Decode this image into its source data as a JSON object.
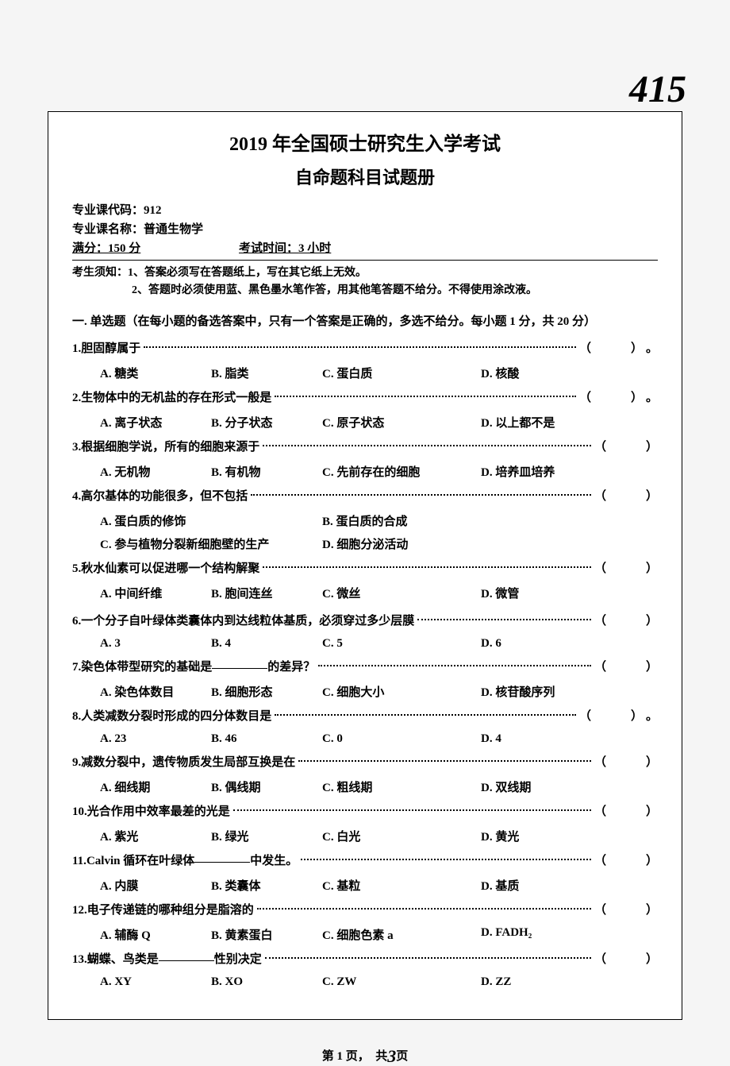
{
  "handwritten_page": "415",
  "header": {
    "title": "2019 年全国硕士研究生入学考试",
    "subtitle": "自命题科目试题册",
    "course_code_label": "专业课代码：",
    "course_code": "912",
    "course_name_label": "专业课名称：",
    "course_name": "普通生物学",
    "full_marks_label": "满分：",
    "full_marks": "150 分",
    "exam_time_label": "考试时间：",
    "exam_time": "3 小时",
    "notice_label": "考生须知：",
    "notice1": "1、答案必须写在答题纸上，写在其它纸上无效。",
    "notice2": "2、答题时必须使用蓝、黑色墨水笔作答，用其他笔答题不给分。不得使用涂改液。"
  },
  "section1_title": "一. 单选题（在每小题的备选答案中，只有一个答案是正确的，多选不给分。每小题 1 分，共 20 分）",
  "questions": [
    {
      "num": "1.",
      "stem": "胆固醇属于",
      "tail_period": true,
      "options": {
        "A": "糖类",
        "B": "脂类",
        "C": "蛋白质",
        "D": "核酸"
      }
    },
    {
      "num": "2.",
      "stem": "生物体中的无机盐的存在形式一般是",
      "tail_period": true,
      "options": {
        "A": "离子状态",
        "B": "分子状态",
        "C": "原子状态",
        "D": "以上都不是"
      }
    },
    {
      "num": "3.",
      "stem": "根据细胞学说，所有的细胞来源于",
      "tail_period": false,
      "options": {
        "A": "无机物",
        "B": "有机物",
        "C": "先前存在的细胞",
        "D": "培养皿培养"
      }
    },
    {
      "num": "4.",
      "stem": "高尔基体的功能很多，但不包括",
      "tail_period": false,
      "options_layout": "2col",
      "options": {
        "A": "蛋白质的修饰",
        "B": "蛋白质的合成",
        "C": "参与植物分裂新细胞壁的生产",
        "D": "细胞分泌活动"
      }
    },
    {
      "num": "5.",
      "stem": "秋水仙素可以促进哪一个结构解聚",
      "tail_period": false,
      "options": {
        "A": "中间纤维",
        "B": "胞间连丝",
        "C": "微丝",
        "D": "微管"
      }
    },
    {
      "num": "6.",
      "stem": "一个分子自叶绿体类囊体内到达线粒体基质，必须穿过多少层膜",
      "tail_period": false,
      "extra_margin": true,
      "options": {
        "A": "3",
        "B": "4",
        "C": "5",
        "D": "6"
      }
    },
    {
      "num": "7.",
      "stem_pre": "染色体带型研究的基础是",
      "stem_post": "的差异？",
      "has_blank": true,
      "tail_period": false,
      "options": {
        "A": "染色体数目",
        "B": "细胞形态",
        "C": "细胞大小",
        "D": "核苷酸序列"
      }
    },
    {
      "num": "8.",
      "stem": "人类减数分裂时形成的四分体数目是",
      "tail_period": true,
      "options": {
        "A": "23",
        "B": "46",
        "C": "0",
        "D": "4"
      }
    },
    {
      "num": "9.",
      "stem": "减数分裂中，遗传物质发生局部互换是在",
      "tail_period": false,
      "options": {
        "A": "细线期",
        "B": "偶线期",
        "C": "粗线期",
        "D": "双线期"
      }
    },
    {
      "num": "10.",
      "stem": "光合作用中效率最差的光是",
      "tail_period": false,
      "options": {
        "A": "紫光",
        "B": "绿光",
        "C": "白光",
        "D": "黄光"
      }
    },
    {
      "num": "11.",
      "stem_pre": "Calvin 循环在叶绿体",
      "stem_post": "中发生。",
      "has_blank": true,
      "tail_period": false,
      "options": {
        "A": "内膜",
        "B": "类囊体",
        "C": "基粒",
        "D": "基质"
      }
    },
    {
      "num": "12.",
      "stem": "电子传递链的哪种组分是脂溶的",
      "tail_period": false,
      "options": {
        "A": "辅酶 Q",
        "B": "黄素蛋白",
        "C": "细胞色素 a",
        "D": "FADH₂"
      }
    },
    {
      "num": "13.",
      "stem_pre": "蝴蝶、鸟类是",
      "stem_post": "性别决定",
      "has_blank": true,
      "tail_period": false,
      "options": {
        "A": "XY",
        "B": "XO",
        "C": "ZW",
        "D": "ZZ"
      }
    }
  ],
  "footer": {
    "prefix": "第 1 页，　共",
    "handwritten": "3",
    "suffix": "页"
  },
  "colors": {
    "text": "#000000",
    "background": "#f5f5f5",
    "box_bg": "#ffffff"
  }
}
